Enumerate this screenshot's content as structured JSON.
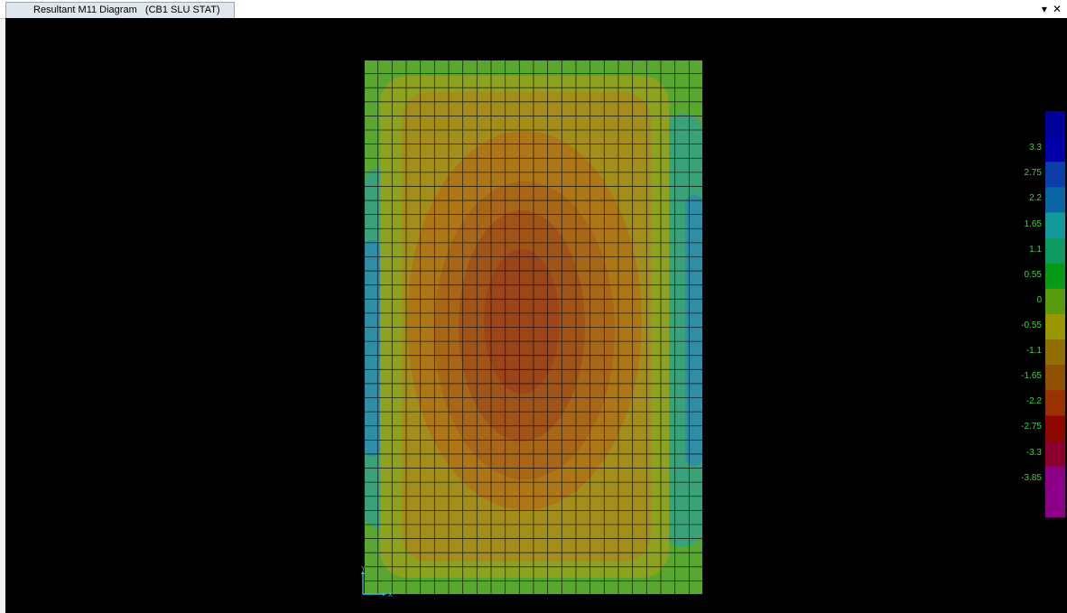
{
  "window": {
    "tab_title": "Resultant M11 Diagram   (CB1 SLU STAT)",
    "menu_icon": "chevron-down-icon",
    "close_icon": "close-icon",
    "menu_glyph": "▾",
    "close_glyph": "✕"
  },
  "axis": {
    "y_label": "Y",
    "x_label": "X",
    "color": "#29c6e0"
  },
  "legend": {
    "labels": [
      "3.3",
      "2.75",
      "2.2",
      "1.65",
      "1.1",
      "0.55",
      "0",
      "-0.55",
      "-1.1",
      "-1.65",
      "-2.2",
      "-2.75",
      "-3.3",
      "-3.85"
    ],
    "colors": [
      "#0000a8",
      "#0a3ea8",
      "#0a66a2",
      "#129a9a",
      "#109a63",
      "#079a16",
      "#5a9a0f",
      "#9a9600",
      "#906e00",
      "#8e5200",
      "#9a3100",
      "#8e0800",
      "#8c0030",
      "#8c0088"
    ],
    "label_color": "#39d439"
  },
  "plate": {
    "mesh_columns": 24,
    "mesh_rows": 38,
    "contour_colors": {
      "edge_blue": "#2e8ea6",
      "teal": "#3aa278",
      "green": "#58a82f",
      "yellow_green": "#8ea21f",
      "olive": "#a48e1b",
      "orange": "#ad7716",
      "brown": "#a86716",
      "dark_orange": "#a15417",
      "center": "#9c4518"
    }
  }
}
